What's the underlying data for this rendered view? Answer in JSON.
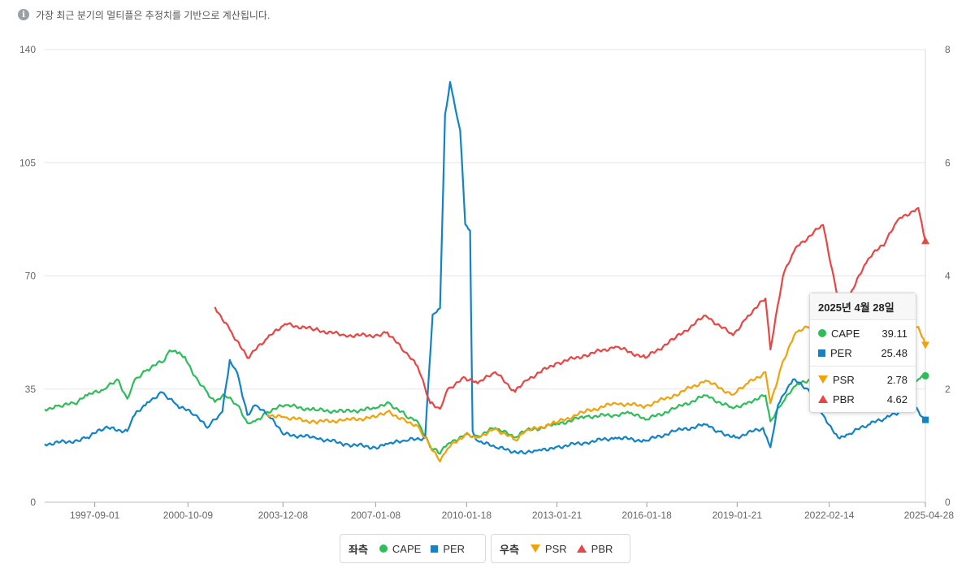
{
  "note": {
    "text": "가장 최근 분기의 멀티플은 추정치를 기반으로 계산됩니다."
  },
  "tooltip": {
    "date": "2025년 4월 28일",
    "left": [
      {
        "name": "CAPE",
        "value": "39.11",
        "color": "#2ebd59",
        "marker": "circle"
      },
      {
        "name": "PER",
        "value": "25.48",
        "color": "#1283c4",
        "marker": "square"
      }
    ],
    "right": [
      {
        "name": "PSR",
        "value": "2.78",
        "color": "#f0a20a",
        "marker": "triangle-down"
      },
      {
        "name": "PBR",
        "value": "4.62",
        "color": "#e84545",
        "marker": "triangle-up"
      }
    ]
  },
  "legend": {
    "left_title": "좌측",
    "right_title": "우측",
    "left_items": [
      {
        "name": "CAPE",
        "color": "#2ebd59",
        "marker": "circle"
      },
      {
        "name": "PER",
        "color": "#1283c4",
        "marker": "square"
      }
    ],
    "right_items": [
      {
        "name": "PSR",
        "color": "#f0a20a",
        "marker": "triangle-down"
      },
      {
        "name": "PBR",
        "color": "#e84545",
        "marker": "triangle-up"
      }
    ]
  },
  "chart_data": {
    "type": "line",
    "x_ticks": [
      "1997-09-01",
      "2000-10-09",
      "2003-12-08",
      "2007-01-08",
      "2010-01-18",
      "2013-01-21",
      "2016-01-18",
      "2019-01-21",
      "2022-02-14",
      "2025-04-28"
    ],
    "x_range": [
      "1996-01-01",
      "2025-04-28"
    ],
    "y_left": {
      "ticks": [
        0,
        35,
        70,
        105,
        140
      ],
      "range": [
        0,
        140
      ]
    },
    "y_right": {
      "ticks": [
        0,
        2,
        4,
        6,
        8
      ],
      "range": [
        0,
        8
      ]
    },
    "grid": true,
    "legend_position": "bottom-center",
    "series": [
      {
        "name": "CAPE",
        "axis": "left",
        "color": "#2ebd59",
        "points": [
          [
            "1996-01",
            28.7
          ],
          [
            "1996-06",
            29.8
          ],
          [
            "1997-01",
            30.5
          ],
          [
            "1997-06",
            33
          ],
          [
            "1998-01",
            35
          ],
          [
            "1998-06",
            38
          ],
          [
            "1998-10",
            32
          ],
          [
            "1999-01",
            38
          ],
          [
            "1999-06",
            41
          ],
          [
            "2000-01",
            44
          ],
          [
            "2000-03",
            47
          ],
          [
            "2000-06",
            46
          ],
          [
            "2000-09",
            45
          ],
          [
            "2001-01",
            39
          ],
          [
            "2001-06",
            34
          ],
          [
            "2001-09",
            31
          ],
          [
            "2002-01",
            33
          ],
          [
            "2002-06",
            30
          ],
          [
            "2002-10",
            24.5
          ],
          [
            "2003-01",
            25
          ],
          [
            "2003-06",
            28
          ],
          [
            "2004-01",
            30
          ],
          [
            "2005-01",
            28.5
          ],
          [
            "2006-01",
            28
          ],
          [
            "2007-01",
            29
          ],
          [
            "2007-06",
            31
          ],
          [
            "2008-01",
            27
          ],
          [
            "2008-06",
            25
          ],
          [
            "2008-11",
            17
          ],
          [
            "2009-03",
            15
          ],
          [
            "2009-06",
            18
          ],
          [
            "2010-01",
            21
          ],
          [
            "2010-06",
            20.5
          ],
          [
            "2011-01",
            23
          ],
          [
            "2011-09",
            20
          ],
          [
            "2012-01",
            22
          ],
          [
            "2013-01",
            24
          ],
          [
            "2014-01",
            26.5
          ],
          [
            "2015-01",
            27
          ],
          [
            "2015-06",
            28
          ],
          [
            "2016-01",
            25.5
          ],
          [
            "2017-01",
            29
          ],
          [
            "2018-01",
            33
          ],
          [
            "2018-12",
            29
          ],
          [
            "2019-06",
            31
          ],
          [
            "2020-01",
            33
          ],
          [
            "2020-03",
            25
          ],
          [
            "2020-08",
            31
          ],
          [
            "2021-01",
            36
          ],
          [
            "2021-12",
            40
          ],
          [
            "2022-06",
            31
          ],
          [
            "2022-10",
            29
          ],
          [
            "2023-06",
            31
          ],
          [
            "2024-01",
            33
          ],
          [
            "2024-06",
            36
          ],
          [
            "2025-02",
            38
          ],
          [
            "2025-04-28",
            39.11
          ]
        ]
      },
      {
        "name": "PER",
        "axis": "left",
        "color": "#1283c4",
        "points": [
          [
            "1996-01",
            18
          ],
          [
            "1997-01",
            19
          ],
          [
            "1997-06",
            20
          ],
          [
            "1998-01",
            23
          ],
          [
            "1998-10",
            22
          ],
          [
            "1999-01",
            27
          ],
          [
            "1999-06",
            31
          ],
          [
            "1999-12",
            34
          ],
          [
            "2000-06",
            30
          ],
          [
            "2001-01",
            27
          ],
          [
            "2001-06",
            23
          ],
          [
            "2001-12",
            28
          ],
          [
            "2002-03",
            44
          ],
          [
            "2002-06",
            40
          ],
          [
            "2002-10",
            27
          ],
          [
            "2003-01",
            30
          ],
          [
            "2003-06",
            27
          ],
          [
            "2004-01",
            21
          ],
          [
            "2005-01",
            20
          ],
          [
            "2006-01",
            18
          ],
          [
            "2007-01",
            17
          ],
          [
            "2007-06",
            18
          ],
          [
            "2008-01",
            19
          ],
          [
            "2008-09",
            20
          ],
          [
            "2008-12",
            58
          ],
          [
            "2009-03",
            60
          ],
          [
            "2009-05",
            120
          ],
          [
            "2009-07",
            130
          ],
          [
            "2009-09",
            122
          ],
          [
            "2009-11",
            115
          ],
          [
            "2010-01",
            86
          ],
          [
            "2010-03",
            84
          ],
          [
            "2010-04",
            22
          ],
          [
            "2010-06",
            19
          ],
          [
            "2011-01",
            17
          ],
          [
            "2012-01",
            15
          ],
          [
            "2012-06",
            16
          ],
          [
            "2013-01",
            17
          ],
          [
            "2014-01",
            18.5
          ],
          [
            "2015-01",
            20
          ],
          [
            "2016-01",
            19
          ],
          [
            "2017-01",
            22
          ],
          [
            "2018-01",
            24
          ],
          [
            "2018-06",
            22
          ],
          [
            "2019-01",
            20
          ],
          [
            "2019-12",
            23
          ],
          [
            "2020-03",
            17
          ],
          [
            "2020-06",
            30
          ],
          [
            "2020-12",
            38
          ],
          [
            "2021-06",
            35
          ],
          [
            "2021-12",
            27
          ],
          [
            "2022-06",
            20
          ],
          [
            "2022-10",
            21
          ],
          [
            "2023-06",
            24
          ],
          [
            "2024-01",
            26
          ],
          [
            "2024-12",
            30
          ],
          [
            "2025-04-28",
            25.48
          ]
        ]
      },
      {
        "name": "PSR",
        "axis": "right",
        "color": "#f0a20a",
        "points": [
          [
            "2003-06",
            1.55
          ],
          [
            "2004-01",
            1.5
          ],
          [
            "2005-01",
            1.42
          ],
          [
            "2006-01",
            1.45
          ],
          [
            "2007-01",
            1.5
          ],
          [
            "2007-06",
            1.6
          ],
          [
            "2008-01",
            1.45
          ],
          [
            "2008-06",
            1.35
          ],
          [
            "2008-11",
            1.0
          ],
          [
            "2009-03",
            0.72
          ],
          [
            "2009-06",
            0.95
          ],
          [
            "2010-01",
            1.2
          ],
          [
            "2010-06",
            1.15
          ],
          [
            "2011-01",
            1.3
          ],
          [
            "2011-09",
            1.1
          ],
          [
            "2012-01",
            1.25
          ],
          [
            "2013-01",
            1.4
          ],
          [
            "2014-01",
            1.6
          ],
          [
            "2015-01",
            1.75
          ],
          [
            "2016-01",
            1.7
          ],
          [
            "2017-01",
            1.9
          ],
          [
            "2018-01",
            2.15
          ],
          [
            "2018-12",
            1.9
          ],
          [
            "2019-06",
            2.1
          ],
          [
            "2020-01",
            2.3
          ],
          [
            "2020-03",
            1.75
          ],
          [
            "2020-08",
            2.5
          ],
          [
            "2021-01",
            3.0
          ],
          [
            "2021-12",
            3.2
          ],
          [
            "2022-06",
            2.5
          ],
          [
            "2022-10",
            2.4
          ],
          [
            "2023-06",
            2.7
          ],
          [
            "2024-01",
            2.9
          ],
          [
            "2024-06",
            3.1
          ],
          [
            "2025-02",
            3.1
          ],
          [
            "2025-04-28",
            2.78
          ]
        ]
      },
      {
        "name": "PBR",
        "axis": "right",
        "color": "#e84545",
        "points": [
          [
            "2001-09",
            3.45
          ],
          [
            "2002-03",
            3.05
          ],
          [
            "2002-10",
            2.55
          ],
          [
            "2003-06",
            2.9
          ],
          [
            "2004-01",
            3.15
          ],
          [
            "2005-01",
            3.05
          ],
          [
            "2006-01",
            2.95
          ],
          [
            "2007-01",
            2.95
          ],
          [
            "2007-06",
            3.0
          ],
          [
            "2008-01",
            2.65
          ],
          [
            "2008-06",
            2.4
          ],
          [
            "2008-11",
            1.75
          ],
          [
            "2009-03",
            1.65
          ],
          [
            "2009-06",
            2.0
          ],
          [
            "2010-01",
            2.2
          ],
          [
            "2010-06",
            2.1
          ],
          [
            "2011-01",
            2.3
          ],
          [
            "2011-09",
            1.95
          ],
          [
            "2012-01",
            2.15
          ],
          [
            "2013-01",
            2.45
          ],
          [
            "2014-01",
            2.6
          ],
          [
            "2015-01",
            2.75
          ],
          [
            "2016-01",
            2.55
          ],
          [
            "2017-01",
            2.9
          ],
          [
            "2018-01",
            3.3
          ],
          [
            "2018-12",
            2.95
          ],
          [
            "2019-06",
            3.3
          ],
          [
            "2020-01",
            3.6
          ],
          [
            "2020-03",
            2.7
          ],
          [
            "2020-08",
            4.0
          ],
          [
            "2021-01",
            4.5
          ],
          [
            "2021-12",
            4.9
          ],
          [
            "2022-06",
            3.6
          ],
          [
            "2022-10",
            3.6
          ],
          [
            "2023-06",
            4.3
          ],
          [
            "2024-01",
            4.6
          ],
          [
            "2024-06",
            5.0
          ],
          [
            "2025-02",
            5.2
          ],
          [
            "2025-04-28",
            4.62
          ]
        ]
      }
    ]
  }
}
